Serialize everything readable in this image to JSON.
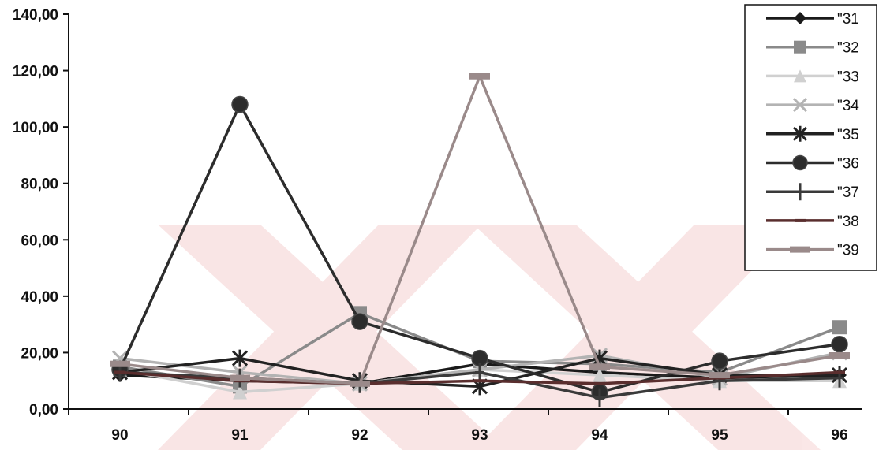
{
  "chart_data": {
    "type": "line",
    "title": "",
    "xlabel": "",
    "ylabel": "",
    "categories": [
      "90",
      "91",
      "92",
      "93",
      "94",
      "95",
      "96"
    ],
    "y_tick_labels": [
      "0,00",
      "20,00",
      "40,00",
      "60,00",
      "80,00",
      "100,00",
      "120,00",
      "140,00"
    ],
    "ylim": [
      0,
      140
    ],
    "grid": false,
    "legend_position": "top-right",
    "series": [
      {
        "name": "\"31",
        "color": "#1a1a1a",
        "marker": "diamond",
        "values": [
          12,
          10,
          9,
          16,
          13,
          11,
          12
        ]
      },
      {
        "name": "\"32",
        "color": "#8a8a8a",
        "marker": "square",
        "values": [
          15,
          8,
          34,
          17,
          16,
          13,
          29
        ]
      },
      {
        "name": "\"33",
        "color": "#d0d0d0",
        "marker": "triangle",
        "values": [
          14,
          6,
          9,
          14,
          12,
          10,
          10
        ]
      },
      {
        "name": "\"34",
        "color": "#b3b3b3",
        "marker": "x",
        "values": [
          18,
          13,
          9,
          14,
          19,
          11,
          20
        ]
      },
      {
        "name": "\"35",
        "color": "#222222",
        "marker": "star",
        "values": [
          13,
          18,
          10,
          8,
          18,
          12,
          12
        ]
      },
      {
        "name": "\"36",
        "color": "#2c2c2c",
        "marker": "circle",
        "values": [
          14,
          108,
          31,
          18,
          6,
          17,
          23
        ]
      },
      {
        "name": "\"37",
        "color": "#3a3a3a",
        "marker": "plus",
        "values": [
          13,
          11,
          9,
          13,
          4,
          10,
          11
        ]
      },
      {
        "name": "\"38",
        "color": "#5a2e2e",
        "marker": "dash",
        "values": [
          13,
          10,
          9,
          10,
          9,
          11,
          13
        ]
      },
      {
        "name": "\"39",
        "color": "#9a8a8a",
        "marker": "bar",
        "values": [
          16,
          11,
          9,
          118,
          15,
          12,
          19
        ]
      }
    ]
  }
}
